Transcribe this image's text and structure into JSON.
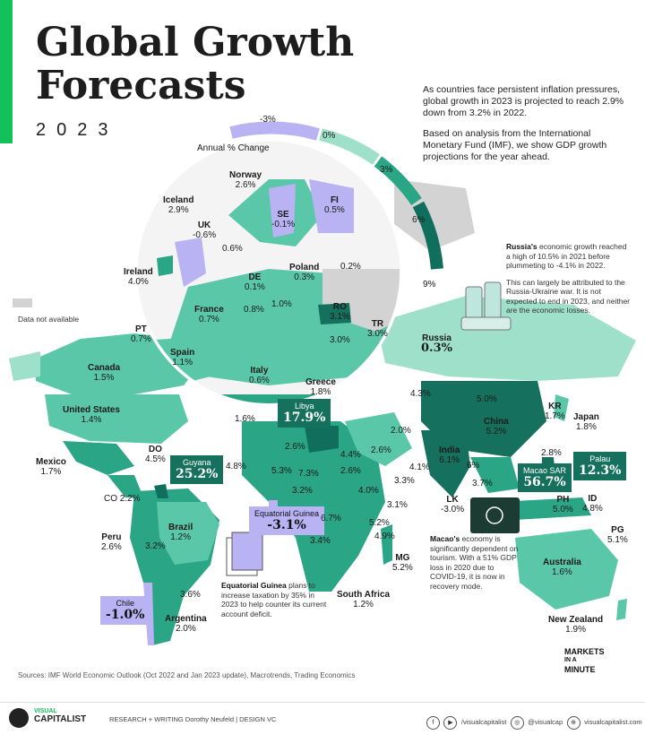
{
  "header": {
    "title_line1": "Global Growth",
    "title_line2": "Forecasts",
    "year": "2023",
    "intro_p1": "As countries face persistent inflation pressures, global growth in 2023 is projected to reach 2.9% down from 3.2% in 2022.",
    "intro_p2": "Based on analysis from the International Monetary Fund (IMF), we show GDP growth projections for the year ahead."
  },
  "scale": {
    "title": "Annual % Change",
    "ticks": [
      "-3%",
      "0%",
      "3%",
      "6%",
      "9%"
    ]
  },
  "legend": {
    "na_label": "Data not available"
  },
  "colors": {
    "brand_green": "#13c15a",
    "dark_teal": "#0f6f5c",
    "mid_teal": "#2aa585",
    "light_teal": "#5ac8a8",
    "pale_teal": "#9fe0cb",
    "negative_purple": "#b9b3f4",
    "na_gray": "#d3d3d3"
  },
  "countries": {
    "norway": {
      "name": "Norway",
      "value": "2.6%"
    },
    "iceland": {
      "name": "Iceland",
      "value": "2.9%"
    },
    "fi": {
      "name": "FI",
      "value": "0.5%"
    },
    "se": {
      "name": "SE",
      "value": "-0.1%"
    },
    "uk": {
      "name": "UK",
      "value": "-0.6%"
    },
    "unl_06": {
      "value": "0.6%"
    },
    "ireland": {
      "name": "Ireland",
      "value": "4.0%"
    },
    "de": {
      "name": "DE",
      "value": "0.1%"
    },
    "poland": {
      "name": "Poland",
      "value": "0.3%"
    },
    "unl_02": {
      "value": "0.2%"
    },
    "france": {
      "name": "France",
      "value": "0.7%"
    },
    "unl_08": {
      "value": "0.8%"
    },
    "unl_10": {
      "value": "1.0%"
    },
    "ro": {
      "name": "RO",
      "value": "3.1%"
    },
    "tr": {
      "name": "TR",
      "value": "3.0%"
    },
    "pt": {
      "name": "PT",
      "value": "0.7%"
    },
    "spain": {
      "name": "Spain",
      "value": "1.1%"
    },
    "unl_30": {
      "value": "3.0%"
    },
    "italy": {
      "name": "Italy",
      "value": "0.6%"
    },
    "greece": {
      "name": "Greece",
      "value": "1.8%"
    },
    "russia": {
      "name": "Russia",
      "value": "0.3%"
    },
    "canada": {
      "name": "Canada",
      "value": "1.5%"
    },
    "us": {
      "name": "United States",
      "value": "1.4%"
    },
    "unl_16": {
      "value": "1.6%"
    },
    "libya": {
      "name": "Libya",
      "value": "17.9%"
    },
    "unl_43": {
      "value": "4.3%"
    },
    "unl_50": {
      "value": "5.0%"
    },
    "kr": {
      "name": "KR",
      "value": "1.7%"
    },
    "japan": {
      "name": "Japan",
      "value": "1.8%"
    },
    "china": {
      "name": "China",
      "value": "5.2%"
    },
    "unl_20": {
      "value": "2.0%"
    },
    "unl_26a": {
      "value": "2.6%"
    },
    "unl_26b": {
      "value": "2.6%"
    },
    "unl_44": {
      "value": "4.4%"
    },
    "do": {
      "name": "DO",
      "value": "4.5%"
    },
    "mexico": {
      "name": "Mexico",
      "value": "1.7%"
    },
    "guyana": {
      "name": "Guyana",
      "value": "25.2%"
    },
    "unl_48": {
      "value": "4.8%"
    },
    "unl_53": {
      "value": "5.3%"
    },
    "unl_73": {
      "value": "7.3%"
    },
    "unl_26c": {
      "value": "2.6%"
    },
    "india": {
      "name": "India",
      "value": "6.1%"
    },
    "unl_6": {
      "value": "6%"
    },
    "unl_41": {
      "value": "4.1%"
    },
    "unl_33": {
      "value": "3.3%"
    },
    "unl_28": {
      "value": "2.8%"
    },
    "palau": {
      "name": "Palau",
      "value": "12.3%"
    },
    "macao": {
      "name": "Macao SAR",
      "value": "56.7%"
    },
    "unl_37": {
      "value": "3.7%"
    },
    "co": {
      "name": "CO",
      "value": "2.2%"
    },
    "unl_32a": {
      "value": "3.2%"
    },
    "unl_40": {
      "value": "4.0%"
    },
    "lk": {
      "name": "LK",
      "value": "-3.0%"
    },
    "ph": {
      "name": "PH",
      "value": "5.0%"
    },
    "id": {
      "name": "ID",
      "value": "4.8%"
    },
    "eq_guinea": {
      "name": "Equatorial Guinea",
      "value": "-3.1%"
    },
    "unl_31": {
      "value": "3.1%"
    },
    "unl_67": {
      "value": "6.7%"
    },
    "unl_52": {
      "value": "5.2%"
    },
    "unl_49": {
      "value": "4.9%"
    },
    "pg": {
      "name": "PG",
      "value": "5.1%"
    },
    "peru": {
      "name": "Peru",
      "value": "2.6%"
    },
    "brazil": {
      "name": "Brazil",
      "value": "1.2%"
    },
    "unl_32b": {
      "value": "3.2%"
    },
    "unl_34": {
      "value": "3.4%"
    },
    "mg": {
      "name": "MG",
      "value": "5.2%"
    },
    "australia": {
      "name": "Australia",
      "value": "1.6%"
    },
    "unl_36": {
      "value": "3.6%"
    },
    "chile": {
      "name": "Chile",
      "value": "-1.0%"
    },
    "south_africa": {
      "name": "South Africa",
      "value": "1.2%"
    },
    "argentina": {
      "name": "Argentina",
      "value": "2.0%"
    },
    "new_zealand": {
      "name": "New Zealand",
      "value": "1.9%"
    }
  },
  "notes": {
    "russia_bold": "Russia's",
    "russia_p1": "economic growth reached a high of 10.5% in 2021 before plummeting to -4.1% in 2022.",
    "russia_p2": "This can largely be attributed to the Russia-Ukraine war. It is not expected to end in 2023, and neither are the economic losses.",
    "eqg_bold": "Equatorial Guinea",
    "eqg_text": "plans to increase taxation by 35% in 2023 to help counter its current account deficit.",
    "macao_bold": "Macao's",
    "macao_text": "economy is significantly dependent on tourism. With a 51% GDP loss in 2020 due to COVID-19, it is now in recovery mode."
  },
  "sources": "Sources: IMF World Economic Outlook (Oct 2022 and Jan 2023 update), Macrotrends, Trading Economics",
  "badge": {
    "line1": "MARKETS",
    "line2": "IN A",
    "line3": "MINUTE"
  },
  "footer": {
    "brand_top": "VISUAL",
    "brand_bottom": "CAPITALIST",
    "credits": "RESEARCH + WRITING  Dorothy Neufeld  |  DESIGN  VC",
    "social1": "/visualcapitalist",
    "social2": "@visualcap",
    "site": "visualcapitalist.com"
  }
}
